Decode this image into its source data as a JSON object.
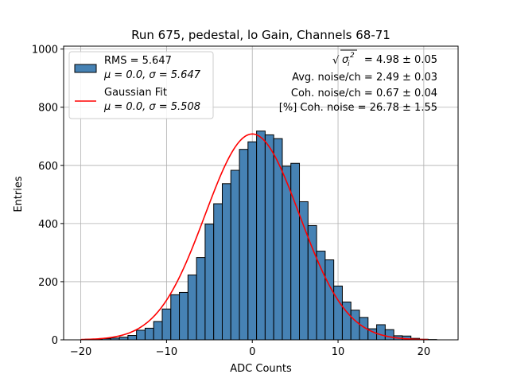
{
  "chart_data": {
    "type": "bar",
    "title": "Run 675, pedestal, lo Gain, Channels 68-71",
    "xlabel": "ADC Counts",
    "ylabel": "Entries",
    "xlim": [
      -22,
      24
    ],
    "ylim": [
      0,
      1010
    ],
    "xticks": [
      -20,
      -10,
      0,
      10,
      20
    ],
    "yticks": [
      0,
      200,
      400,
      600,
      800,
      1000
    ],
    "grid": true,
    "legend_position": "top-left",
    "bin_width": 1,
    "bins": [
      {
        "x": -19,
        "y": 2
      },
      {
        "x": -18,
        "y": 2
      },
      {
        "x": -17,
        "y": 4
      },
      {
        "x": -16,
        "y": 6
      },
      {
        "x": -15,
        "y": 9
      },
      {
        "x": -14,
        "y": 15
      },
      {
        "x": -13,
        "y": 33
      },
      {
        "x": -12,
        "y": 40
      },
      {
        "x": -11,
        "y": 63
      },
      {
        "x": -10,
        "y": 106
      },
      {
        "x": -9,
        "y": 155
      },
      {
        "x": -8,
        "y": 163
      },
      {
        "x": -7,
        "y": 223
      },
      {
        "x": -6,
        "y": 283
      },
      {
        "x": -5,
        "y": 398
      },
      {
        "x": -4,
        "y": 468
      },
      {
        "x": -3,
        "y": 537
      },
      {
        "x": -2,
        "y": 583
      },
      {
        "x": -1,
        "y": 655
      },
      {
        "x": 0,
        "y": 681
      },
      {
        "x": 1,
        "y": 718
      },
      {
        "x": 2,
        "y": 705
      },
      {
        "x": 3,
        "y": 692
      },
      {
        "x": 4,
        "y": 597
      },
      {
        "x": 5,
        "y": 607
      },
      {
        "x": 6,
        "y": 475
      },
      {
        "x": 7,
        "y": 393
      },
      {
        "x": 8,
        "y": 305
      },
      {
        "x": 9,
        "y": 275
      },
      {
        "x": 10,
        "y": 185
      },
      {
        "x": 11,
        "y": 130
      },
      {
        "x": 12,
        "y": 102
      },
      {
        "x": 13,
        "y": 77
      },
      {
        "x": 14,
        "y": 38
      },
      {
        "x": 15,
        "y": 52
      },
      {
        "x": 16,
        "y": 35
      },
      {
        "x": 17,
        "y": 14
      },
      {
        "x": 18,
        "y": 13
      },
      {
        "x": 19,
        "y": 5
      },
      {
        "x": 20,
        "y": 2
      },
      {
        "x": 21,
        "y": 1
      }
    ],
    "fit": {
      "name": "Gaussian Fit",
      "mu": 0.0,
      "sigma": 5.508,
      "amplitude": 708,
      "x_range": [
        -20,
        20.5
      ],
      "color": "#ff0000"
    },
    "bar_color": "#4682b4",
    "bar_edge_color": "#000000",
    "legend": [
      {
        "line1": "RMS = 5.647",
        "line2": "μ = 0.0, σ = 5.647",
        "kind": "bar"
      },
      {
        "line1": "Gaussian Fit",
        "line2": "μ = 0.0, σ = 5.508",
        "kind": "line"
      }
    ],
    "annotations": [
      {
        "prefix": "√",
        "radicand": "σ",
        "sub": "i",
        "sup": "2",
        "text": "= 4.98 ± 0.05"
      },
      {
        "text": "Avg. noise/ch = 2.49 ± 0.03"
      },
      {
        "text": "Coh. noise/ch = 0.67 ± 0.04"
      },
      {
        "text": "[%] Coh. noise = 26.78 ± 1.55"
      }
    ]
  }
}
